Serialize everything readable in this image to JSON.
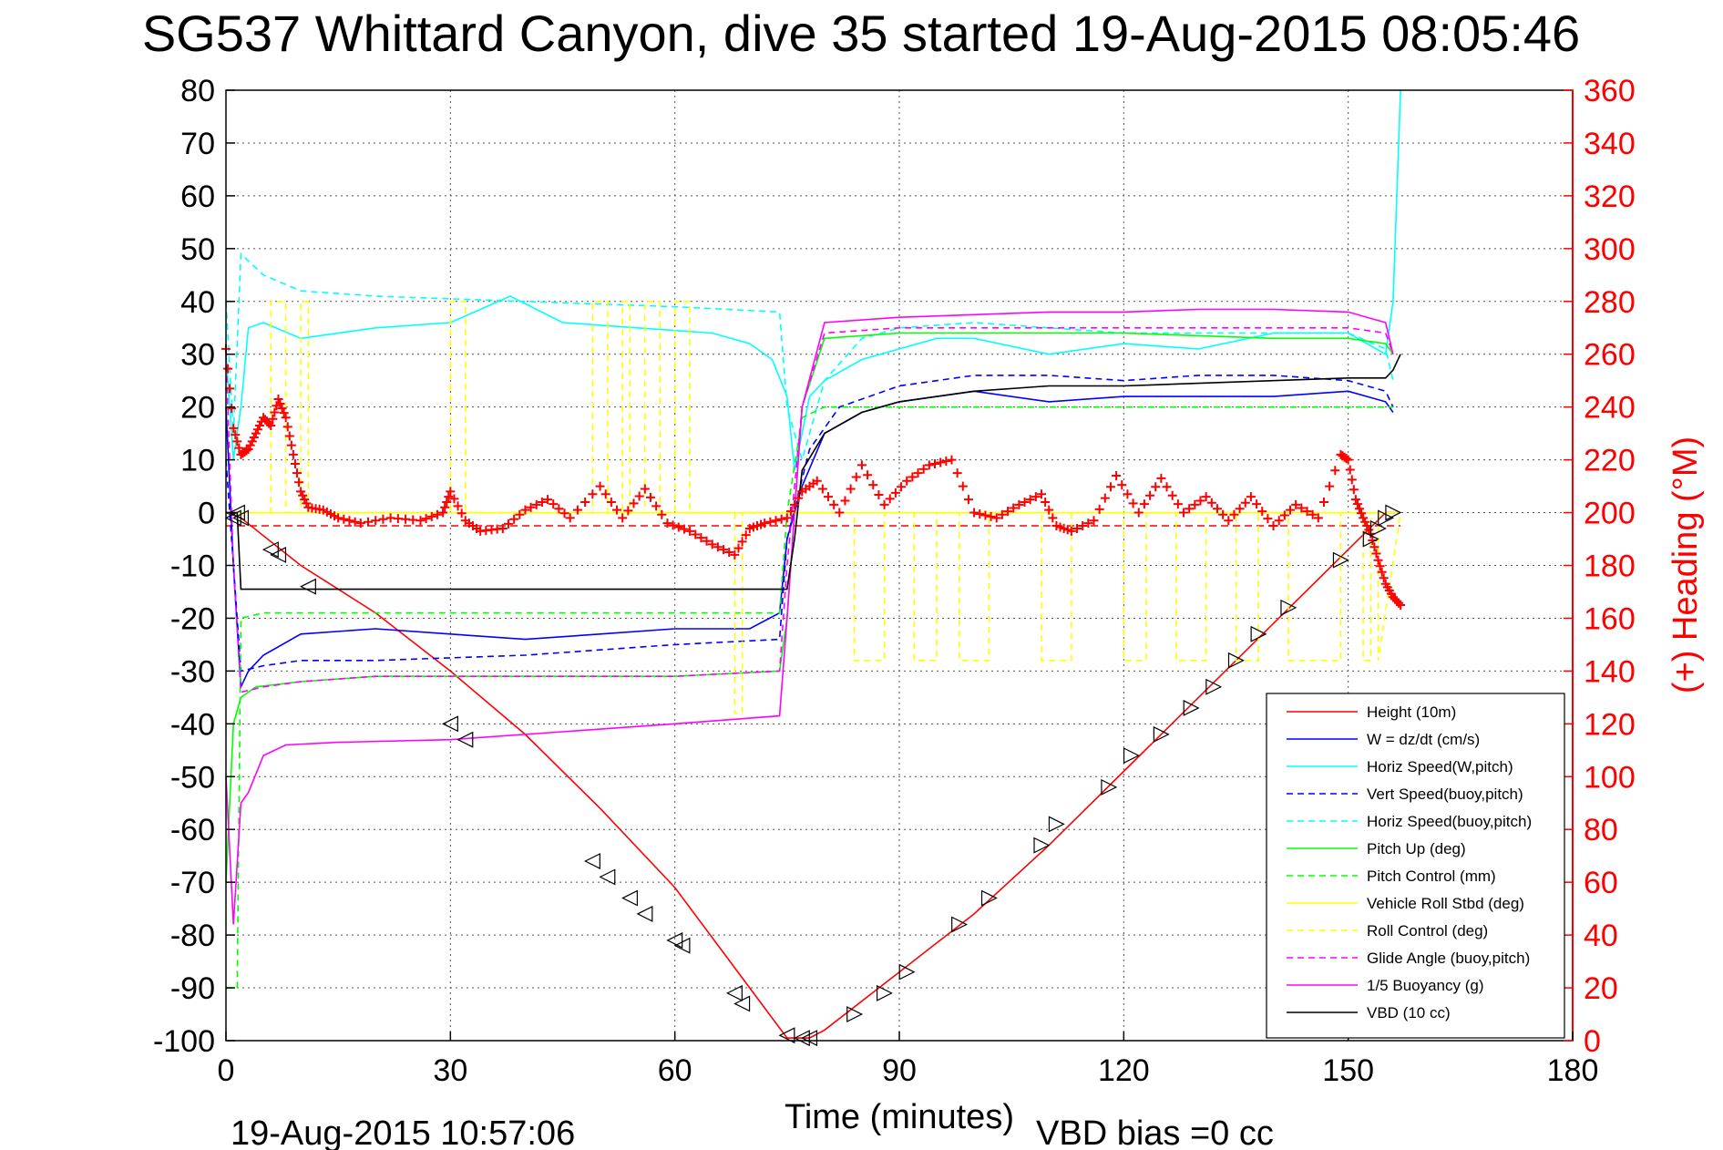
{
  "chart_data": {
    "type": "line",
    "title": "SG537 Whittard Canyon, dive 35 started 19-Aug-2015 08:05:46",
    "xlabel": "Time (minutes)",
    "ylabel_right": "(+) Heading (°M)",
    "footer_left": "19-Aug-2015 10:57:06",
    "footer_right": "VBD bias =0 cc",
    "xlim": [
      0,
      180
    ],
    "ylim": [
      -100,
      80
    ],
    "ylim_right": [
      0,
      360
    ],
    "x_ticks": [
      "0",
      "30",
      "60",
      "90",
      "120",
      "150",
      "180"
    ],
    "y_ticks": [
      "80",
      "70",
      "60",
      "50",
      "40",
      "30",
      "20",
      "10",
      "0",
      "-10",
      "-20",
      "-30",
      "-40",
      "-50",
      "-60",
      "-70",
      "-80",
      "-90",
      "-100"
    ],
    "y_ticks_right": [
      "360",
      "340",
      "320",
      "300",
      "280",
      "260",
      "240",
      "220",
      "200",
      "180",
      "160",
      "140",
      "120",
      "100",
      "80",
      "60",
      "40",
      "20",
      "0"
    ],
    "grid": true,
    "legend_position": "bottom-right",
    "series": [
      {
        "name": "Height (10m)",
        "color": "#ff0000",
        "style": "solid",
        "x": [
          0,
          2,
          10,
          20,
          30,
          40,
          50,
          60,
          70,
          75,
          78,
          80,
          90,
          100,
          110,
          120,
          130,
          140,
          150,
          155,
          157
        ],
        "y": [
          0,
          -1,
          -10,
          -19,
          -30,
          -42,
          -56,
          -71,
          -90,
          -99.5,
          -99.5,
          -98,
          -87,
          -76,
          -63,
          -49,
          -35,
          -21,
          -7,
          0,
          0
        ]
      },
      {
        "name": "W = dz/dt (cm/s)",
        "color": "#0000ff",
        "style": "solid",
        "x": [
          0,
          1,
          2,
          3,
          5,
          10,
          20,
          30,
          40,
          50,
          60,
          70,
          74,
          75,
          77,
          80,
          85,
          90,
          100,
          110,
          120,
          130,
          140,
          150,
          155,
          156
        ],
        "y": [
          20,
          -10,
          -33,
          -30,
          -27,
          -23,
          -22,
          -23,
          -24,
          -23,
          -22,
          -22,
          -19,
          -5,
          5,
          15,
          19,
          21,
          23,
          21,
          22,
          22,
          22,
          23,
          21,
          19
        ]
      },
      {
        "name": "Horiz Speed(W,pitch)",
        "color": "#00ffff",
        "style": "solid",
        "x": [
          0,
          1,
          2,
          3,
          5,
          10,
          20,
          30,
          38,
          45,
          55,
          65,
          70,
          73,
          75,
          76,
          78,
          80,
          85,
          90,
          95,
          100,
          110,
          120,
          130,
          140,
          150,
          155,
          156,
          157
        ],
        "y": [
          30,
          10,
          20,
          35,
          36,
          33,
          35,
          36,
          41,
          36,
          35,
          34,
          32,
          29,
          22,
          8,
          22,
          25,
          29,
          31,
          33,
          33,
          30,
          32,
          31,
          34,
          34,
          30,
          40,
          80
        ]
      },
      {
        "name": "Vert Speed(buoy,pitch)",
        "color": "#0000ff",
        "style": "dashed",
        "x": [
          0,
          2,
          5,
          10,
          20,
          40,
          60,
          74,
          75,
          78,
          82,
          90,
          100,
          110,
          120,
          130,
          140,
          150,
          155,
          156
        ],
        "y": [
          10,
          -30,
          -29,
          -28,
          -28,
          -27,
          -25,
          -24,
          -5,
          12,
          20,
          24,
          26,
          26,
          25,
          26,
          26,
          25,
          23,
          20
        ]
      },
      {
        "name": "Horiz Speed(buoy,pitch)",
        "color": "#00ffff",
        "style": "dashed",
        "x": [
          0,
          1,
          2,
          5,
          10,
          20,
          40,
          60,
          74,
          75,
          77,
          80,
          85,
          90,
          100,
          110,
          120,
          130,
          140,
          150,
          155,
          156
        ],
        "y": [
          40,
          15,
          49,
          45,
          42,
          41,
          40,
          39,
          38,
          20,
          10,
          25,
          33,
          35,
          36,
          35,
          34,
          34,
          34,
          34,
          31,
          25
        ]
      },
      {
        "name": "Pitch Up (deg)",
        "color": "#00ff00",
        "style": "solid",
        "x": [
          0,
          1,
          2,
          4,
          10,
          20,
          40,
          60,
          74,
          75,
          77,
          80,
          90,
          100,
          120,
          140,
          150,
          155,
          156
        ],
        "y": [
          -70,
          -40,
          -35,
          -33,
          -32,
          -31,
          -31,
          -31,
          -30,
          -20,
          20,
          33,
          34,
          34,
          34,
          33,
          33,
          32,
          30
        ]
      },
      {
        "name": "Pitch Control (mm)",
        "color": "#00ff00",
        "style": "dashed",
        "x": [
          0,
          1.5,
          2,
          5,
          30,
          60,
          74,
          75,
          77,
          80,
          90,
          120,
          150,
          155,
          156
        ],
        "y": [
          -90,
          -90,
          -20,
          -19,
          -19,
          -19,
          -19,
          0,
          18,
          20,
          20,
          20,
          20,
          20,
          20
        ]
      },
      {
        "name": "Vehicle Roll Stbd (deg)",
        "color": "#ffff00",
        "style": "solid",
        "x": [
          0,
          2,
          4,
          10,
          30,
          60,
          75,
          90,
          120,
          150,
          155,
          157
        ],
        "y": [
          0,
          0,
          0,
          0,
          0,
          0,
          0,
          0,
          0,
          0,
          0,
          0
        ]
      },
      {
        "name": "Roll Control (deg)",
        "color": "#ffff00",
        "style": "dashed",
        "x": [
          0,
          6,
          6,
          8,
          8,
          10,
          10,
          11,
          11,
          30,
          30,
          32,
          32,
          49,
          49,
          51,
          51,
          53,
          53,
          54,
          54,
          56,
          56,
          58,
          58,
          60,
          60,
          62,
          62,
          68,
          68,
          69,
          69,
          75,
          84,
          84,
          88,
          88,
          92,
          92,
          95,
          95,
          98,
          98,
          102,
          102,
          109,
          109,
          113,
          113,
          120,
          120,
          123,
          123,
          127,
          127,
          131,
          131,
          135,
          135,
          138,
          138,
          142,
          142,
          149,
          149,
          152,
          152,
          153,
          153,
          154,
          154,
          157
        ],
        "y": [
          0,
          0,
          40,
          40,
          0,
          0,
          40,
          40,
          0,
          0,
          40,
          40,
          0,
          0,
          40,
          40,
          0,
          0,
          40,
          40,
          0,
          0,
          40,
          40,
          0,
          0,
          40,
          40,
          0,
          0,
          -38,
          -38,
          0,
          0,
          0,
          -28,
          -28,
          0,
          0,
          -28,
          -28,
          0,
          0,
          -28,
          -28,
          0,
          0,
          -28,
          -28,
          0,
          0,
          -28,
          -28,
          0,
          0,
          -28,
          -28,
          0,
          0,
          -28,
          -28,
          0,
          0,
          -28,
          -28,
          0,
          0,
          -28,
          -28,
          0,
          0,
          -28,
          0
        ]
      },
      {
        "name": "Glide Angle (buoy,pitch)",
        "color": "#ff00ff",
        "style": "dashed",
        "x": [
          0,
          1,
          2,
          5,
          10,
          20,
          40,
          60,
          74,
          75,
          77,
          80,
          90,
          100,
          120,
          140,
          150,
          155,
          156
        ],
        "y": [
          30,
          -10,
          -34,
          -33,
          -32,
          -31,
          -31,
          -31,
          -30,
          -10,
          20,
          34,
          35,
          35,
          35,
          35,
          35,
          34,
          30
        ]
      },
      {
        "name": "1/5 Buoyancy (g)",
        "color": "#ff00ff",
        "style": "solid",
        "x": [
          0,
          1,
          2,
          3,
          5,
          8,
          15,
          30,
          45,
          60,
          74,
          75,
          77,
          80,
          90,
          100,
          110,
          120,
          130,
          140,
          150,
          155,
          156
        ],
        "y": [
          -50,
          -78,
          -55,
          -53,
          -46,
          -44,
          -43.5,
          -43,
          -41.5,
          -40,
          -38.5,
          -20,
          20,
          36,
          37,
          37.5,
          38,
          38,
          38.5,
          38.5,
          38,
          36,
          30
        ]
      },
      {
        "name": "VBD (10 cc)",
        "color": "#000000",
        "style": "solid",
        "x": [
          0,
          1.5,
          2,
          75,
          76,
          77,
          80,
          85,
          90,
          100,
          110,
          120,
          130,
          140,
          150,
          155,
          156,
          157
        ],
        "y": [
          0,
          0,
          -14.5,
          -14.5,
          -5,
          8,
          15,
          19,
          21,
          23,
          24,
          24,
          24.5,
          25,
          25.5,
          25.5,
          27,
          30
        ]
      }
    ],
    "heading": {
      "name": "(+) Heading",
      "color": "#ff0000",
      "mean_deg": 195,
      "x": [
        0,
        1,
        2,
        3,
        4,
        5,
        6,
        7,
        8,
        9,
        10,
        11,
        13,
        15,
        18,
        22,
        26,
        29,
        30,
        32,
        34,
        37,
        40,
        43,
        46,
        50,
        53,
        56,
        59,
        62,
        65,
        68,
        70,
        72,
        75,
        77,
        79,
        82,
        85,
        88,
        91,
        94,
        97,
        100,
        103,
        106,
        109,
        111,
        113,
        116,
        119,
        122,
        125,
        128,
        131,
        134,
        137,
        140,
        143,
        146,
        149,
        150,
        151,
        152,
        153,
        154,
        155,
        156,
        157
      ],
      "y": [
        262,
        232,
        222,
        224,
        230,
        236,
        233,
        243,
        236,
        222,
        208,
        202,
        201,
        198,
        196,
        198,
        197,
        200,
        208,
        197,
        193,
        194,
        201,
        205,
        198,
        210,
        198,
        209,
        196,
        193,
        188,
        184,
        194,
        196,
        198,
        208,
        212,
        200,
        218,
        203,
        212,
        218,
        220,
        200,
        198,
        203,
        207,
        195,
        193,
        197,
        214,
        200,
        213,
        200,
        206,
        197,
        206,
        195,
        203,
        198,
        222,
        220,
        205,
        198,
        192,
        182,
        173,
        168,
        165
      ]
    },
    "markers_triangle": {
      "x": [
        1,
        1.5,
        2,
        6,
        7,
        11,
        30,
        32,
        49,
        51,
        54,
        56,
        60,
        61,
        68,
        69,
        75,
        77,
        78,
        84,
        88,
        91,
        98,
        102,
        109,
        111,
        118,
        121,
        125,
        129,
        132,
        135,
        138,
        142,
        149,
        153,
        154,
        155,
        156
      ],
      "y": [
        -1,
        0,
        -1,
        -7,
        -8,
        -14,
        -40,
        -43,
        -66,
        -69,
        -73,
        -76,
        -81,
        -82,
        -91,
        -93,
        -99,
        -99.5,
        -99.5,
        -95,
        -91,
        -87,
        -78,
        -73,
        -63,
        -59,
        -52,
        -46,
        -42,
        -37,
        -33,
        -28,
        -23,
        -18,
        -9,
        -5,
        -3,
        -1,
        0
      ]
    }
  }
}
